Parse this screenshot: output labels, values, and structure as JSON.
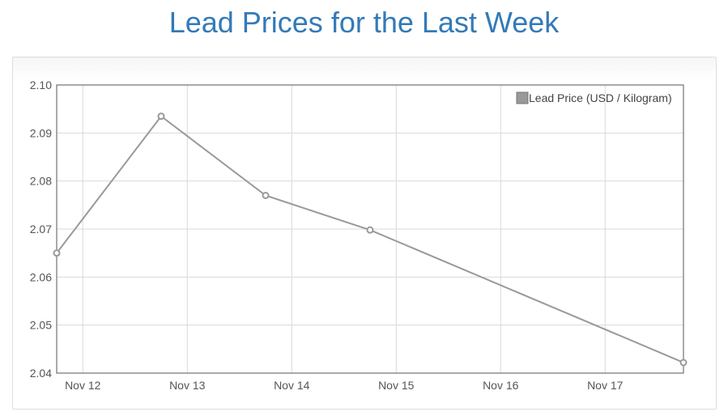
{
  "title": "Lead Prices for the Last Week",
  "colors": {
    "title": "#337ab7",
    "series": "#999999",
    "grid": "#d9d9d9",
    "axis": "#555555"
  },
  "chart_data": {
    "type": "line",
    "title": "Lead Prices for the Last Week",
    "xlabel": "",
    "ylabel": "",
    "x": [
      "Nov 11 18:00",
      "Nov 12 18:00",
      "Nov 13 18:00",
      "Nov 14 18:00",
      "Nov 17 18:00"
    ],
    "xlim": [
      "Nov 11 18:00",
      "Nov 17 18:00"
    ],
    "x_tick_labels": [
      "Nov 12",
      "Nov 13",
      "Nov 14",
      "Nov 15",
      "Nov 16",
      "Nov 17"
    ],
    "ylim": [
      2.04,
      2.1
    ],
    "y_tick_labels": [
      "2.04",
      "2.05",
      "2.06",
      "2.07",
      "2.08",
      "2.09",
      "2.10"
    ],
    "series": [
      {
        "name": "Lead Price (USD / Kilogram)",
        "values": [
          2.065,
          2.0935,
          2.077,
          2.0698,
          2.0422
        ]
      }
    ],
    "grid": true,
    "legend_position": "top-right",
    "markers": "hollow circles"
  }
}
